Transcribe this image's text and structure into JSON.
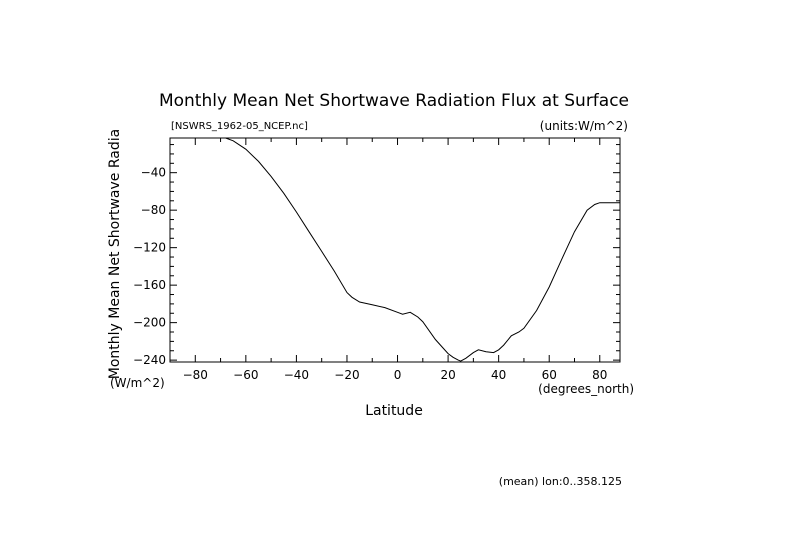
{
  "chart_data": {
    "type": "line",
    "title": "Monthly Mean Net Shortwave Radiation Flux at Surface",
    "file_label": "[NSWRS_1962-05_NCEP.nc]",
    "units_label": "(units:W/m^2)",
    "xlabel": "Latitude",
    "x_units": "(degrees_north)",
    "ylabel": "Monthly Mean Net Shortwave Radia",
    "y_units": "(W/m^2)",
    "footnote": "(mean) lon:0..358.125",
    "xlim": [
      -90,
      88
    ],
    "ylim": [
      -242,
      -3
    ],
    "xticks": [
      -80,
      -60,
      -40,
      -20,
      0,
      20,
      40,
      60,
      80
    ],
    "yticks": [
      -40,
      -80,
      -120,
      -160,
      -200,
      -240
    ],
    "series": [
      {
        "x": [
          -72,
          -68,
          -65,
          -60,
          -55,
          -50,
          -45,
          -40,
          -35,
          -30,
          -25,
          -20,
          -18,
          -15,
          -10,
          -5,
          0,
          2,
          5,
          8,
          10,
          15,
          20,
          22,
          24,
          25,
          27,
          30,
          32,
          35,
          38,
          40,
          42,
          45,
          48,
          50,
          55,
          60,
          65,
          70,
          75,
          78,
          80,
          85,
          88
        ],
        "y": [
          -3,
          -3,
          -6,
          -15,
          -28,
          -44,
          -62,
          -82,
          -103,
          -124,
          -145,
          -168,
          -173,
          -178,
          -181,
          -184,
          -189,
          -191,
          -189,
          -194,
          -199,
          -218,
          -233,
          -237,
          -240,
          -241,
          -238,
          -232,
          -229,
          -231,
          -232,
          -229,
          -224,
          -214,
          -210,
          -206,
          -187,
          -162,
          -132,
          -103,
          -80,
          -74,
          -72,
          -72,
          -72
        ]
      }
    ]
  }
}
